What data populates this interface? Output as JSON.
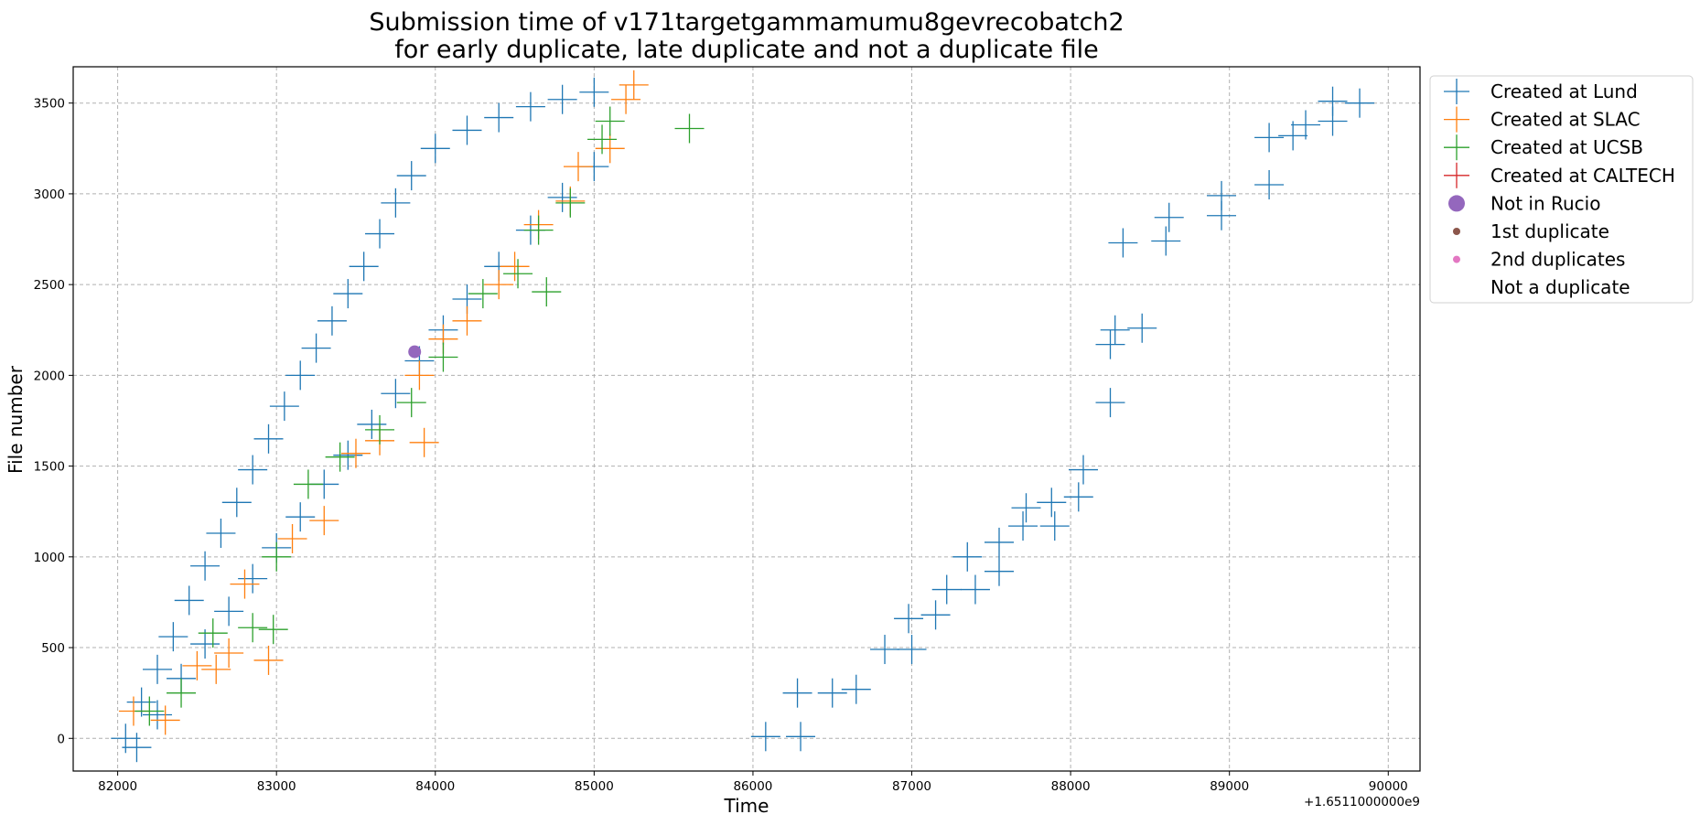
{
  "chart_data": {
    "type": "scatter",
    "title": "Submission time of v171targetgammamumu8gevrecobatch2",
    "subtitle": "for early duplicate, late duplicate and not a duplicate file",
    "xlabel": "Time",
    "ylabel": "File number",
    "x_offset_label": "+1.6511000000e9",
    "xlim": [
      81720,
      90200
    ],
    "ylim": [
      -180,
      3700
    ],
    "x_ticks": [
      82000,
      83000,
      84000,
      85000,
      86000,
      87000,
      88000,
      89000,
      90000
    ],
    "y_ticks": [
      0,
      500,
      1000,
      1500,
      2000,
      2500,
      3000,
      3500
    ],
    "grid": true,
    "legend_position": "outside-right",
    "series": [
      {
        "name": "Created at Lund",
        "marker": "+",
        "color": "#1f77b4",
        "points": [
          [
            82050,
            0
          ],
          [
            82150,
            200
          ],
          [
            82250,
            380
          ],
          [
            82350,
            560
          ],
          [
            82450,
            760
          ],
          [
            82550,
            950
          ],
          [
            82650,
            1130
          ],
          [
            82750,
            1300
          ],
          [
            82850,
            1480
          ],
          [
            82950,
            1650
          ],
          [
            83050,
            1830
          ],
          [
            83150,
            2000
          ],
          [
            83250,
            2150
          ],
          [
            83350,
            2300
          ],
          [
            83450,
            2450
          ],
          [
            83550,
            2600
          ],
          [
            83650,
            2780
          ],
          [
            83750,
            2950
          ],
          [
            83850,
            3100
          ],
          [
            84000,
            3250
          ],
          [
            84200,
            3350
          ],
          [
            84400,
            3420
          ],
          [
            84600,
            3480
          ],
          [
            84800,
            3520
          ],
          [
            85000,
            3560
          ],
          [
            82120,
            -50
          ],
          [
            82250,
            130
          ],
          [
            82400,
            330
          ],
          [
            82550,
            520
          ],
          [
            82700,
            700
          ],
          [
            82850,
            880
          ],
          [
            83000,
            1050
          ],
          [
            83150,
            1220
          ],
          [
            83300,
            1400
          ],
          [
            83450,
            1560
          ],
          [
            83600,
            1730
          ],
          [
            83750,
            1900
          ],
          [
            83900,
            2080
          ],
          [
            84050,
            2250
          ],
          [
            84200,
            2420
          ],
          [
            84400,
            2600
          ],
          [
            84600,
            2800
          ],
          [
            84800,
            2980
          ],
          [
            85000,
            3150
          ],
          [
            86080,
            10
          ],
          [
            86300,
            10
          ],
          [
            86280,
            250
          ],
          [
            86500,
            250
          ],
          [
            86650,
            270
          ],
          [
            86830,
            490
          ],
          [
            87000,
            490
          ],
          [
            86980,
            660
          ],
          [
            87150,
            680
          ],
          [
            87220,
            820
          ],
          [
            87400,
            820
          ],
          [
            87350,
            1000
          ],
          [
            87550,
            920
          ],
          [
            87550,
            1080
          ],
          [
            87700,
            1170
          ],
          [
            87720,
            1270
          ],
          [
            87880,
            1300
          ],
          [
            87900,
            1170
          ],
          [
            88050,
            1330
          ],
          [
            88080,
            1480
          ],
          [
            88250,
            1850
          ],
          [
            88250,
            2170
          ],
          [
            88280,
            2250
          ],
          [
            88450,
            2260
          ],
          [
            88330,
            2730
          ],
          [
            88600,
            2740
          ],
          [
            88620,
            2870
          ],
          [
            88950,
            2880
          ],
          [
            88950,
            2990
          ],
          [
            89250,
            3050
          ],
          [
            89250,
            3310
          ],
          [
            89400,
            3320
          ],
          [
            89480,
            3380
          ],
          [
            89650,
            3400
          ],
          [
            89650,
            3510
          ],
          [
            89820,
            3500
          ]
        ]
      },
      {
        "name": "Created at SLAC",
        "marker": "+",
        "color": "#ff7f0e",
        "points": [
          [
            82100,
            150
          ],
          [
            82300,
            100
          ],
          [
            82500,
            400
          ],
          [
            82700,
            470
          ],
          [
            82620,
            380
          ],
          [
            82950,
            430
          ],
          [
            82800,
            850
          ],
          [
            83100,
            1100
          ],
          [
            83300,
            1200
          ],
          [
            83500,
            1570
          ],
          [
            83650,
            1640
          ],
          [
            83930,
            1630
          ],
          [
            83900,
            2000
          ],
          [
            84050,
            2200
          ],
          [
            84200,
            2300
          ],
          [
            84400,
            2500
          ],
          [
            84500,
            2600
          ],
          [
            84650,
            2830
          ],
          [
            84850,
            2960
          ],
          [
            84900,
            3150
          ],
          [
            85100,
            3250
          ],
          [
            85200,
            3520
          ],
          [
            85250,
            3600
          ]
        ]
      },
      {
        "name": "Created at UCSB",
        "marker": "+",
        "color": "#2ca02c",
        "points": [
          [
            82200,
            150
          ],
          [
            82400,
            250
          ],
          [
            82600,
            580
          ],
          [
            82850,
            610
          ],
          [
            82980,
            600
          ],
          [
            83000,
            1000
          ],
          [
            83200,
            1400
          ],
          [
            83400,
            1550
          ],
          [
            83650,
            1700
          ],
          [
            83850,
            1850
          ],
          [
            84050,
            2100
          ],
          [
            84300,
            2450
          ],
          [
            84520,
            2560
          ],
          [
            84700,
            2460
          ],
          [
            84650,
            2800
          ],
          [
            84850,
            2950
          ],
          [
            85050,
            3300
          ],
          [
            85100,
            3400
          ],
          [
            85600,
            3360
          ]
        ]
      },
      {
        "name": "Created at CALTECH",
        "marker": "+",
        "color": "#d62728",
        "points": []
      },
      {
        "name": "Not in Rucio",
        "marker": "o",
        "color": "#9467bd",
        "points": [
          [
            83870,
            2130
          ]
        ]
      },
      {
        "name": "1st duplicate",
        "marker": ".",
        "color": "#8c564b",
        "points": []
      },
      {
        "name": "2nd duplicates",
        "marker": ".",
        "color": "#e377c2",
        "points": []
      },
      {
        "name": "Not a duplicate",
        "marker": "none",
        "color": "#ffffff",
        "points": []
      }
    ]
  }
}
